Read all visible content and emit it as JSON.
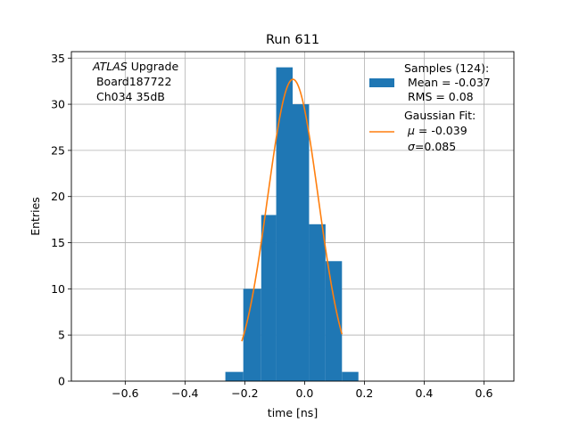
{
  "chart_data": {
    "type": "bar",
    "title": "Run 611",
    "xlabel": "time [ns]",
    "ylabel": "Entries",
    "xlim": [
      -0.78,
      0.7
    ],
    "ylim": [
      0,
      35.7
    ],
    "xticks": [
      -0.6,
      -0.4,
      -0.2,
      0.0,
      0.2,
      0.4,
      0.6
    ],
    "xtick_labels": [
      "−0.6",
      "−0.4",
      "−0.2",
      "0.0",
      "0.2",
      "0.4",
      "0.6"
    ],
    "yticks": [
      0,
      5,
      10,
      15,
      20,
      25,
      30,
      35
    ],
    "grid": true,
    "histogram": {
      "bin_edges": [
        -0.265,
        -0.205,
        -0.145,
        -0.095,
        -0.04,
        0.015,
        0.07,
        0.125,
        0.18
      ],
      "counts": [
        1,
        10,
        18,
        34,
        30,
        17,
        13,
        1
      ],
      "color": "#1f77b4"
    },
    "gaussian_fit": {
      "mu": -0.039,
      "sigma": 0.085,
      "amplitude": 32.7,
      "x_range": [
        -0.21,
        0.125
      ],
      "color": "#ff7f0e"
    },
    "annotation": {
      "line1_italic": "ATLAS",
      "line1_rest": " Upgrade",
      "line2": " Board187722",
      "line3": " Ch034 35dB"
    },
    "legend": {
      "placement": "top-right",
      "samples_lines": [
        "Samples (124):",
        " Mean = -0.037",
        " RMS = 0.08"
      ],
      "fit_line1": "Gaussian Fit:",
      "fit_mu_sym": "μ",
      "fit_mu_val": " = -0.039",
      "fit_sigma_sym": "σ",
      "fit_sigma_val": "=0.085"
    }
  }
}
